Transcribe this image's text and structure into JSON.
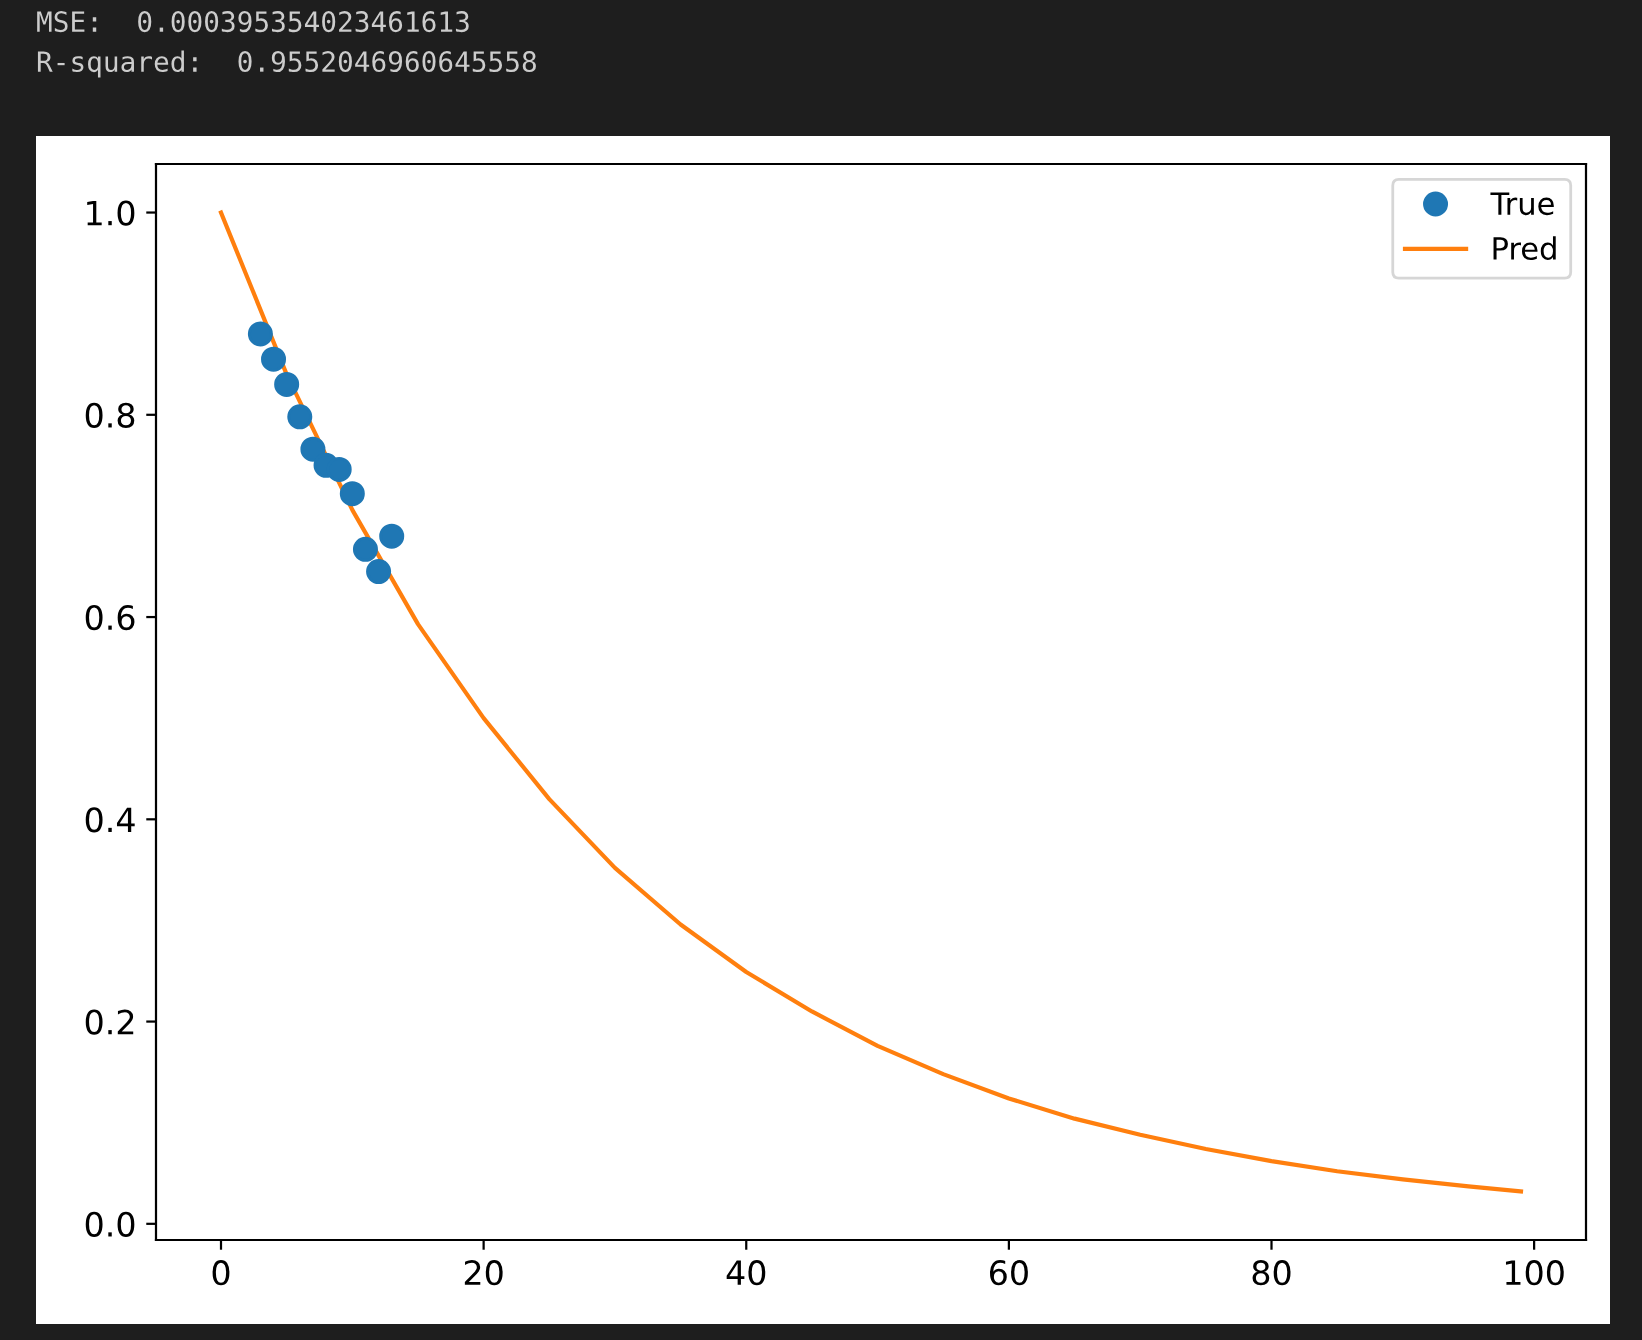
{
  "chart_data": {
    "type": "line",
    "annotations": [
      "MSE:  0.000395354023461613",
      "R-squared:  0.9552046960645558"
    ],
    "series": [
      {
        "name": "True",
        "type": "scatter",
        "color": "#1f77b4",
        "marker": "circle",
        "x": [
          3,
          4,
          5,
          6,
          7,
          8,
          9,
          10,
          11,
          12,
          13
        ],
        "values": [
          0.88,
          0.855,
          0.83,
          0.798,
          0.766,
          0.75,
          0.746,
          0.722,
          0.667,
          0.645,
          0.68
        ]
      },
      {
        "name": "Pred",
        "type": "line",
        "color": "#ff7f0e",
        "x": [
          0,
          5,
          10,
          15,
          20,
          25,
          30,
          35,
          40,
          45,
          50,
          55,
          60,
          65,
          70,
          75,
          80,
          85,
          90,
          95,
          99
        ],
        "values": [
          1.0,
          0.84,
          0.706,
          0.593,
          0.5,
          0.42,
          0.352,
          0.296,
          0.249,
          0.21,
          0.176,
          0.148,
          0.124,
          0.104,
          0.088,
          0.074,
          0.062,
          0.052,
          0.044,
          0.037,
          0.032
        ]
      }
    ],
    "xlim": [
      -4.95,
      103.95
    ],
    "ylim": [
      -0.016,
      1.048
    ],
    "xticks": [
      0,
      20,
      40,
      60,
      80,
      100
    ],
    "yticks": [
      {
        "value": 0,
        "label": "0.0"
      },
      {
        "value": 0.2,
        "label": "0.2"
      },
      {
        "value": 0.4,
        "label": "0.4"
      },
      {
        "value": 0.6,
        "label": "0.6"
      },
      {
        "value": 0.8,
        "label": "0.8"
      },
      {
        "value": 1.0,
        "label": "1.0"
      }
    ],
    "grid": false,
    "legend": "top right"
  }
}
